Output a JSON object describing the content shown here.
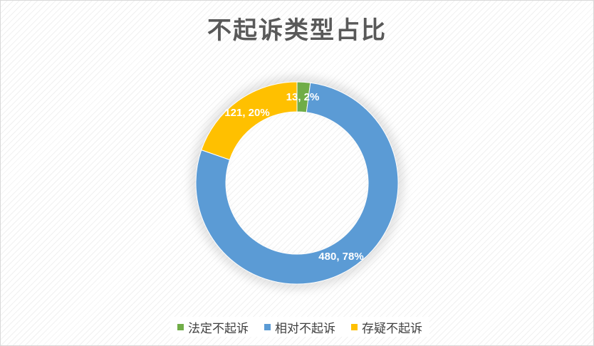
{
  "chart_data": {
    "type": "pie",
    "variant": "donut",
    "title": "不起诉类型占比",
    "categories": [
      "法定不起诉",
      "相对不起诉",
      "存疑不起诉"
    ],
    "values": [
      13,
      480,
      121
    ],
    "percentages": [
      "2%",
      "78%",
      "20%"
    ],
    "data_labels": [
      "13, 2%",
      "480, 78%",
      "121, 20%"
    ],
    "colors": [
      "#70AD47",
      "#5B9BD5",
      "#FFC000"
    ],
    "legend_position": "bottom"
  }
}
